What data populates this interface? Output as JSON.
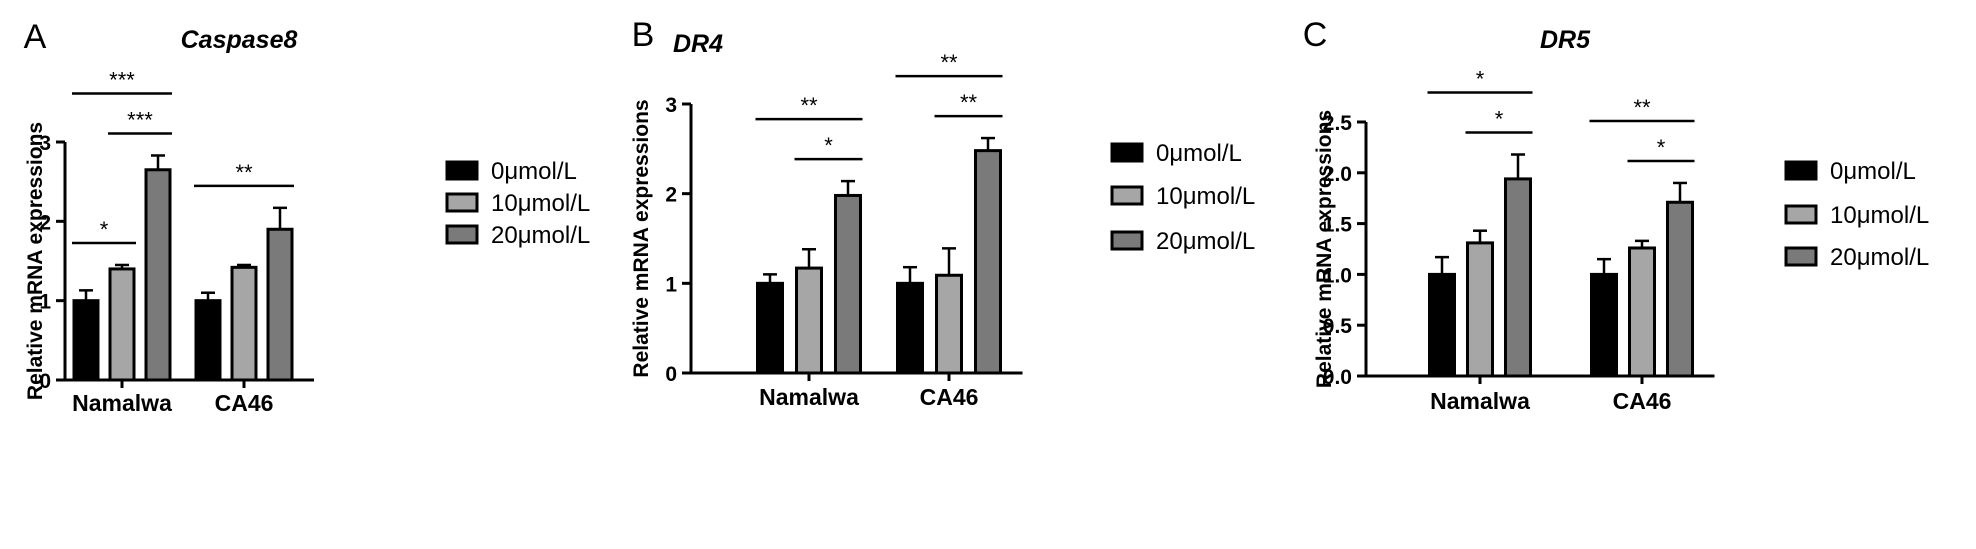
{
  "chart_data": [
    {
      "panel": "A",
      "type": "bar",
      "title": "Caspase8",
      "ylabel": "Relative mRNA expressions",
      "xlabel": "",
      "ylim": [
        0,
        3
      ],
      "yticks": [
        "0",
        "1",
        "2",
        "3"
      ],
      "categories": [
        "Namalwa",
        "CA46"
      ],
      "series": [
        {
          "name": "0μmol/L",
          "color": "#000000",
          "values": [
            1.0,
            1.0
          ],
          "errors": [
            0.13,
            0.1
          ]
        },
        {
          "name": "10μmol/L",
          "color": "#a6a6a6",
          "values": [
            1.4,
            1.42
          ],
          "errors": [
            0.05,
            0.03
          ]
        },
        {
          "name": "20μmol/L",
          "color": "#7a7a7a",
          "values": [
            2.65,
            1.9
          ],
          "errors": [
            0.18,
            0.27
          ]
        }
      ],
      "significance": [
        {
          "label": "***",
          "group": 0,
          "from": 0,
          "to": 2
        },
        {
          "label": "***",
          "group": 0,
          "from": 1,
          "to": 2
        },
        {
          "label": "*",
          "group": 0,
          "from": 0,
          "to": 1
        },
        {
          "label": "**",
          "group": 1,
          "from": 0,
          "to": 2
        }
      ]
    },
    {
      "panel": "B",
      "type": "bar",
      "title": "DR4",
      "ylabel": "Relative mRNA expressions",
      "xlabel": "",
      "ylim": [
        0,
        3
      ],
      "yticks": [
        "0",
        "1",
        "2",
        "3"
      ],
      "categories": [
        "Namalwa",
        "CA46"
      ],
      "series": [
        {
          "name": "0μmol/L",
          "color": "#000000",
          "values": [
            1.0,
            1.0
          ],
          "errors": [
            0.1,
            0.18
          ]
        },
        {
          "name": "10μmol/L",
          "color": "#a6a6a6",
          "values": [
            1.17,
            1.09
          ],
          "errors": [
            0.21,
            0.3
          ]
        },
        {
          "name": "20μmol/L",
          "color": "#7a7a7a",
          "values": [
            1.98,
            2.48
          ],
          "errors": [
            0.16,
            0.14
          ]
        }
      ],
      "significance": [
        {
          "label": "**",
          "group": 0,
          "from": 0,
          "to": 2
        },
        {
          "label": "*",
          "group": 0,
          "from": 1,
          "to": 2
        },
        {
          "label": "**",
          "group": 1,
          "from": 0,
          "to": 2
        },
        {
          "label": "**",
          "group": 1,
          "from": 1,
          "to": 2
        }
      ]
    },
    {
      "panel": "C",
      "type": "bar",
      "title": "DR5",
      "ylabel": "Relative mRNA expressions",
      "xlabel": "",
      "ylim": [
        0,
        2.5
      ],
      "yticks": [
        "0.0",
        "0.5",
        "1.0",
        "1.5",
        "2.0",
        "2.5"
      ],
      "categories": [
        "Namalwa",
        "CA46"
      ],
      "series": [
        {
          "name": "0μmol/L",
          "color": "#000000",
          "values": [
            1.0,
            1.0
          ],
          "errors": [
            0.17,
            0.15
          ]
        },
        {
          "name": "10μmol/L",
          "color": "#a6a6a6",
          "values": [
            1.31,
            1.26
          ],
          "errors": [
            0.12,
            0.07
          ]
        },
        {
          "name": "20μmol/L",
          "color": "#7a7a7a",
          "values": [
            1.94,
            1.71
          ],
          "errors": [
            0.24,
            0.19
          ]
        }
      ],
      "significance": [
        {
          "label": "*",
          "group": 0,
          "from": 0,
          "to": 2
        },
        {
          "label": "*",
          "group": 0,
          "from": 1,
          "to": 2
        },
        {
          "label": "**",
          "group": 1,
          "from": 0,
          "to": 2
        },
        {
          "label": "*",
          "group": 1,
          "from": 1,
          "to": 2
        }
      ]
    }
  ]
}
